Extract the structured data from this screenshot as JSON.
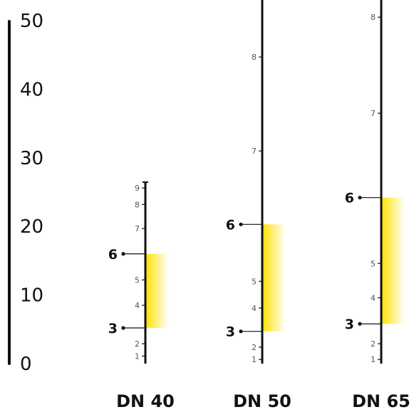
{
  "reference_scale": {
    "ticks": [
      "0",
      "10",
      "20",
      "30",
      "40",
      "50"
    ],
    "values": [
      0,
      10,
      20,
      30,
      40,
      50
    ]
  },
  "columns": [
    {
      "label": "DN 40",
      "tick_labels": [
        "1",
        "2",
        "4",
        "5",
        "7",
        "8",
        "9"
      ],
      "range_min": {
        "label": "3",
        "value": 5.2
      },
      "range_max": {
        "label": "6",
        "value": 16.0
      },
      "ticks": [
        {
          "label": "1",
          "value": 1.1
        },
        {
          "label": "2",
          "value": 2.9
        },
        {
          "label": "4",
          "value": 8.5
        },
        {
          "label": "5",
          "value": 12.2
        },
        {
          "label": "7",
          "value": 19.7
        },
        {
          "label": "8",
          "value": 23.2
        },
        {
          "label": "9",
          "value": 25.6
        }
      ],
      "gradient": [
        "#ffe200",
        "#ffffff"
      ]
    },
    {
      "label": "DN 50",
      "tick_labels": [
        "1",
        "2",
        "4",
        "5",
        "7",
        "8"
      ],
      "range_min": {
        "label": "3",
        "value": 4.7
      },
      "range_max": {
        "label": "6",
        "value": 20.3
      },
      "ticks": [
        {
          "label": "1",
          "value": 0.6
        },
        {
          "label": "2",
          "value": 2.4
        },
        {
          "label": "4",
          "value": 8.1
        },
        {
          "label": "5",
          "value": 12.0
        },
        {
          "label": "7",
          "value": 31.0
        },
        {
          "label": "8",
          "value": 44.7
        }
      ],
      "gradient": [
        "#ffe200",
        "#ffffff"
      ]
    },
    {
      "label": "DN 65",
      "tick_labels": [
        "1",
        "2",
        "4",
        "5",
        "7",
        "8"
      ],
      "range_min": {
        "label": "3",
        "value": 5.8
      },
      "range_max": {
        "label": "6",
        "value": 24.2
      },
      "ticks": [
        {
          "label": "1",
          "value": 0.6
        },
        {
          "label": "2",
          "value": 2.9
        },
        {
          "label": "4",
          "value": 9.6
        },
        {
          "label": "5",
          "value": 14.6
        },
        {
          "label": "7",
          "value": 36.5
        },
        {
          "label": "8",
          "value": 50.5
        }
      ],
      "gradient": [
        "#ffe200",
        "#ffffff"
      ]
    }
  ],
  "colors": {
    "axis": "#111111",
    "tick_text": "#555555",
    "band_top": "#ffe200",
    "band_bottom": "#ffffff"
  }
}
